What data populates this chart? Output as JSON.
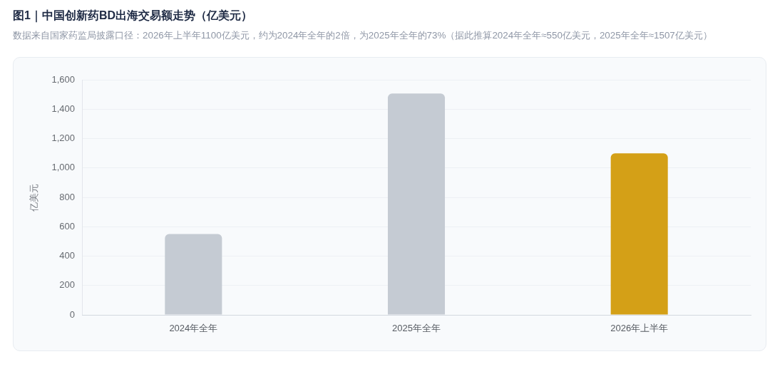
{
  "chart_data": {
    "type": "bar",
    "title": "图1｜中国创新药BD出海交易额走势（亿美元）",
    "subtitle": "数据来自国家药监局披露口径：2026年上半年1100亿美元，约为2024年全年的2倍，为2025年全年的73%（据此推算2024年全年≈550亿美元，2025年全年≈1507亿美元）",
    "ylabel": "亿美元",
    "categories": [
      "2024年全年",
      "2025年全年",
      "2026年上半年"
    ],
    "values": [
      550,
      1507,
      1100
    ],
    "colors": [
      "#c5cbd3",
      "#c5cbd3",
      "#d4a017"
    ],
    "ylim": [
      0,
      1600
    ],
    "yticks": [
      0,
      200,
      400,
      600,
      800,
      {
        "value": 1000,
        "label": "1,000"
      },
      {
        "value": 1200,
        "label": "1,200"
      },
      {
        "value": 1400,
        "label": "1,400"
      },
      {
        "value": 1600,
        "label": "1,600"
      }
    ],
    "grid": "y"
  }
}
